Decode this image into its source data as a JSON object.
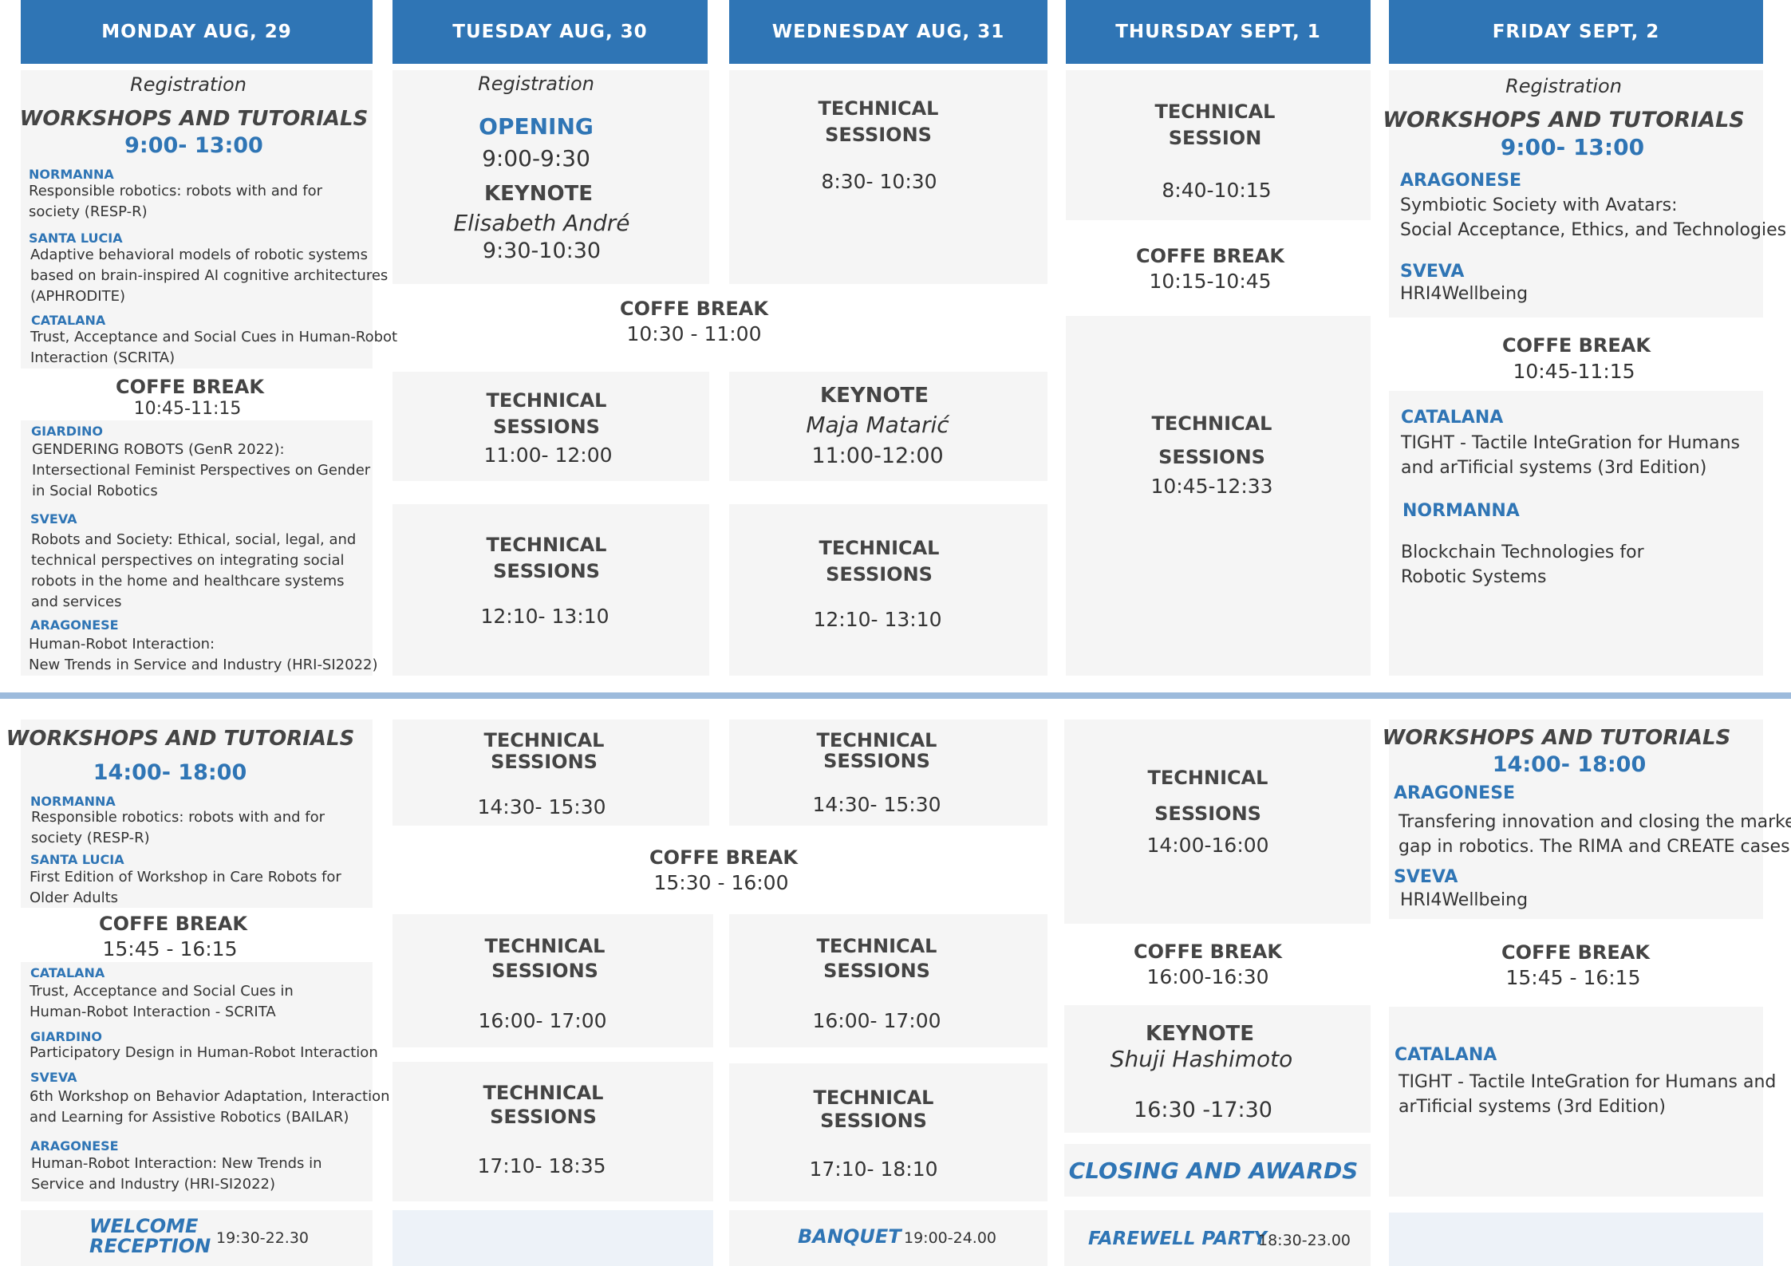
{
  "days": [
    {
      "label": "MONDAY AUG, 29"
    },
    {
      "label": "TUESDAY AUG, 30"
    },
    {
      "label": "WEDNESDAY AUG, 31"
    },
    {
      "label": "THURSDAY SEPT, 1"
    },
    {
      "label": "FRIDAY SEPT, 2"
    }
  ],
  "common": {
    "registration": "Registration",
    "workshops": "WORKSHOPS AND TUTORIALS",
    "coffee": "COFFE BREAK",
    "technical_sessions": [
      "TECHNICAL",
      "SESSIONS"
    ],
    "technical_session": [
      "TECHNICAL",
      "SESSION"
    ],
    "keynote": "KEYNOTE",
    "opening": "OPENING"
  },
  "monday": {
    "am_time": "9:00- 13:00",
    "am_items": [
      {
        "room": "NORMANNA",
        "lines": [
          "Responsible robotics: robots with and for",
          "society  (RESP-R)"
        ]
      },
      {
        "room": "SANTA LUCIA",
        "lines": [
          "Adaptive behavioral models of robotic systems",
          "based on brain-inspired AI cognitive architectures",
          "(APHRODITE)"
        ]
      },
      {
        "room": "CATALANA",
        "lines": [
          "Trust, Acceptance and Social Cues in Human-Robot",
          "Interaction (SCRITA)"
        ]
      }
    ],
    "am_coffee_time": "10:45-11:15",
    "am_items2": [
      {
        "room": "GIARDINO",
        "lines": [
          "GENDERING ROBOTS (GenR 2022):",
          "Intersectional Feminist Perspectives on Gender",
          "in Social Robotics"
        ]
      },
      {
        "room": "SVEVA",
        "lines": [
          "Robots and Society: Ethical, social, legal, and",
          "technical perspectives on integrating social",
          "robots in the home and healthcare systems",
          "and services"
        ]
      },
      {
        "room": "ARAGONESE",
        "lines": [
          "Human-Robot Interaction:",
          "New Trends in Service and Industry (HRI-SI2022)"
        ]
      }
    ],
    "pm_time": "14:00- 18:00",
    "pm_items": [
      {
        "room": "NORMANNA",
        "lines": [
          "Responsible robotics: robots with and for",
          "society (RESP-R)"
        ]
      },
      {
        "room": "SANTA LUCIA",
        "lines": [
          "First Edition of Workshop in Care Robots for",
          "Older Adults"
        ]
      }
    ],
    "pm_coffee_time": "15:45 - 16:15",
    "pm_items2": [
      {
        "room": "CATALANA",
        "lines": [
          "Trust, Acceptance and Social Cues in",
          "Human-Robot Interaction - SCRITA"
        ]
      },
      {
        "room": "GIARDINO",
        "lines": [
          "Participatory Design in Human-Robot Interaction"
        ]
      },
      {
        "room": "SVEVA",
        "lines": [
          "6th Workshop on Behavior Adaptation, Interaction",
          "and Learning for Assistive Robotics (BAILAR)"
        ]
      },
      {
        "room": "ARAGONESE",
        "lines": [
          "Human-Robot Interaction: New Trends in",
          "Service and Industry (HRI-SI2022)"
        ]
      }
    ],
    "evening": {
      "name": [
        "WELCOME",
        "RECEPTION"
      ],
      "time": "19:30-22.30"
    }
  },
  "tuesday": {
    "opening_time": "9:00-9:30",
    "keynote_name": "Elisabeth André",
    "keynote_time": "9:30-10:30",
    "coffee_time": "10:30 - 11:00",
    "ts1": "11:00- 12:00",
    "ts2": "12:10- 13:10",
    "ts3": "14:30- 15:30",
    "coffee_pm_time": "15:30 - 16:00",
    "ts4": "16:00- 17:00",
    "ts5": "17:10- 18:35"
  },
  "wednesday": {
    "ts0": "8:30- 10:30",
    "keynote_name": "Maja Matarić",
    "keynote_time": "11:00-12:00",
    "ts2": "12:10- 13:10",
    "ts3": "14:30- 15:30",
    "ts4": "16:00- 17:00",
    "ts5": "17:10- 18:10",
    "evening": {
      "name": "BANQUET",
      "time": "19:00-24.00"
    }
  },
  "thursday": {
    "ts0": "8:40-10:15",
    "coffee_time": "10:15-10:45",
    "ts1": "10:45-12:33",
    "ts2": "14:00-16:00",
    "coffee_pm_time": "16:00-16:30",
    "keynote_name": "Shuji  Hashimoto",
    "keynote_time": "16:30 -17:30",
    "closing": "CLOSING AND AWARDS",
    "evening": {
      "name": "FAREWELL PARTY",
      "time": "18:30-23.00"
    }
  },
  "friday": {
    "am_time": "9:00- 13:00",
    "am_items": [
      {
        "room": "ARAGONESE",
        "lines": [
          "Symbiotic Society with Avatars:",
          "Social Acceptance, Ethics, and Technologies"
        ]
      },
      {
        "room": "SVEVA",
        "lines": [
          "HRI4Wellbeing"
        ]
      }
    ],
    "coffee_time": "10:45-11:15",
    "am_items2": [
      {
        "room": "CATALANA",
        "lines": [
          "TIGHT - Tactile InteGration for Humans",
          "and arTificial systems (3rd Edition)"
        ]
      },
      {
        "room": "NORMANNA",
        "lines": [
          "Blockchain Technologies for",
          "Robotic Systems"
        ]
      }
    ],
    "pm_time": "14:00- 18:00",
    "pm_items": [
      {
        "room": "ARAGONESE",
        "lines": [
          "Transfering innovation and closing the market",
          "gap in robotics. The RIMA and CREATE cases"
        ]
      },
      {
        "room": "SVEVA",
        "lines": [
          "HRI4Wellbeing"
        ]
      }
    ],
    "coffee_pm_time": "15:45 - 16:15",
    "pm_items2": [
      {
        "room": "CATALANA",
        "lines": [
          "TIGHT - Tactile InteGration for Humans and",
          " arTificial systems (3rd Edition)"
        ]
      }
    ]
  }
}
